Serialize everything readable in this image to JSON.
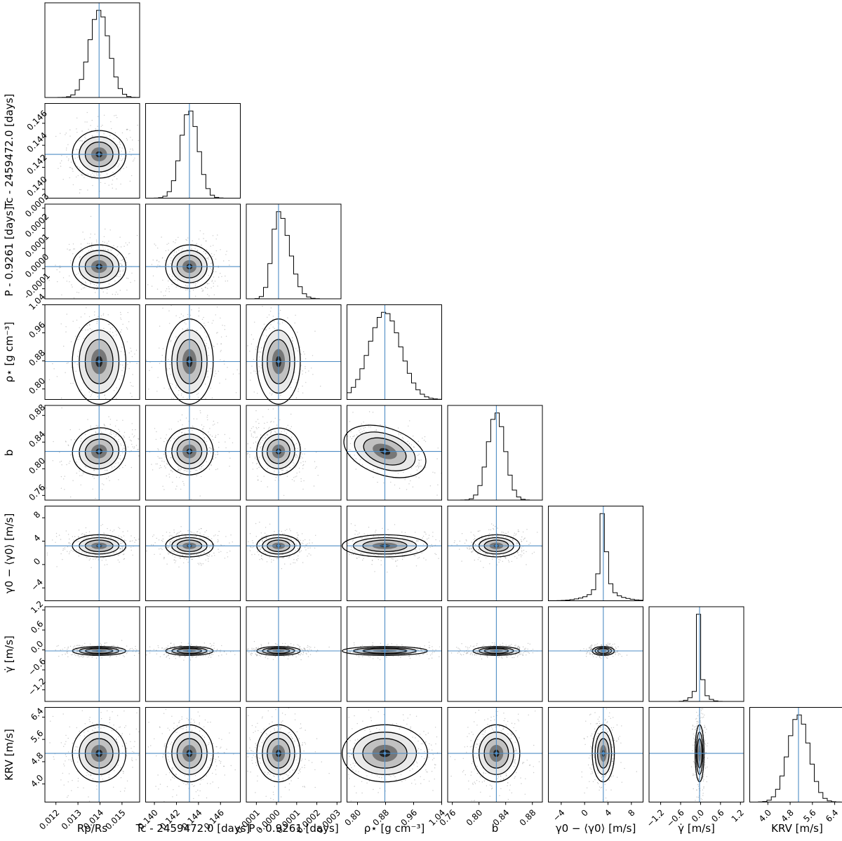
{
  "chart_data": {
    "type": "corner",
    "title": "",
    "grid": false,
    "truth_color": "#4e8cc4",
    "contour_color": "#000000",
    "parameters": [
      {
        "key": "rp_rs",
        "label": "Rp/Rs",
        "range": [
          0.0115,
          0.0158
        ],
        "ticks": [
          0.012,
          0.013,
          0.014,
          0.015
        ],
        "tick_labels": [
          "0.012",
          "0.013",
          "0.014",
          "0.015"
        ],
        "truth": 0.01396,
        "sigma": 0.00045,
        "hist_shape": "normal"
      },
      {
        "key": "tc",
        "label": "Tc - 2459472.0 [days]",
        "range": [
          0.1392,
          0.1478
        ],
        "ticks": [
          0.14,
          0.142,
          0.144,
          0.146
        ],
        "tick_labels": [
          "0.140",
          "0.142",
          "0.144",
          "0.146"
        ],
        "truth": 0.14318,
        "sigma": 0.0008,
        "hist_shape": "normal"
      },
      {
        "key": "period",
        "label": "P - 0.9261 [days]",
        "range": [
          -0.00015,
          0.00032
        ],
        "ticks": [
          -0.0001,
          0.0,
          0.0001,
          0.0002,
          0.0003
        ],
        "tick_labels": [
          "-0.0001",
          "0.0000",
          "0.0001",
          "0.0002",
          "0.0003"
        ],
        "truth": 1e-05,
        "sigma": 4e-05,
        "hist_shape": "right-skew"
      },
      {
        "key": "rho_star",
        "label": "ρ⋆ [g cm⁻³]",
        "range": [
          0.77,
          1.04
        ],
        "ticks": [
          0.8,
          0.88,
          0.96,
          1.04
        ],
        "tick_labels": [
          "0.80",
          "0.88",
          "0.96",
          "1.04"
        ],
        "truth": 0.878,
        "sigma": 0.045,
        "hist_shape": "normal"
      },
      {
        "key": "b",
        "label": "b",
        "range": [
          0.753,
          0.895
        ],
        "ticks": [
          0.76,
          0.8,
          0.84,
          0.88
        ],
        "tick_labels": [
          "0.76",
          "0.80",
          "0.84",
          "0.88"
        ],
        "truth": 0.826,
        "sigma": 0.013,
        "hist_shape": "normal"
      },
      {
        "key": "gamma0",
        "label": "γ0 − ⟨γ0⟩ [m/s]",
        "range": [
          -6.2,
          10.0
        ],
        "ticks": [
          -4,
          0,
          4,
          8
        ],
        "tick_labels": [
          "−4",
          "0",
          "4",
          "8"
        ],
        "truth": 3.2,
        "sigma": 0.7,
        "hist_shape": "peaked"
      },
      {
        "key": "gamma_dot",
        "label": "γ̇ [m/s]",
        "range": [
          -1.55,
          1.3
        ],
        "ticks": [
          -1.2,
          -0.6,
          0.0,
          0.6,
          1.2
        ],
        "tick_labels": [
          "−1.2",
          "−0.6",
          "0.0",
          "0.6",
          "1.2"
        ],
        "truth": -0.03,
        "sigma": 0.05,
        "hist_shape": "peaked"
      },
      {
        "key": "k_rv",
        "label": "KRV [m/s]",
        "range": [
          3.35,
          6.75
        ],
        "ticks": [
          4.0,
          4.8,
          5.6,
          6.4
        ],
        "tick_labels": [
          "4.0",
          "4.8",
          "5.6",
          "6.4"
        ],
        "truth": 5.1,
        "sigma": 0.38,
        "hist_shape": "normal"
      }
    ],
    "y_axis_labels": {
      "tc": "Tc - 2459472.0 [days]",
      "period": "P - 0.9261 [days]",
      "rho_star": "ρ⋆ [g cm⁻³]",
      "b": "b",
      "gamma0": "γ0 − ⟨γ0⟩ [m/s]",
      "gamma_dot": "γ̇ [m/s]",
      "k_rv": "KRV [m/s]"
    },
    "x_axis_labels": [
      "Rp/Rs",
      "Tc - 2459472.0 [days]",
      "P - 0.9261 [days]",
      "ρ⋆ [g cm⁻³]",
      "b",
      "γ0 − ⟨γ0⟩ [m/s]",
      "γ̇ [m/s]",
      "KRV [m/s]"
    ]
  }
}
